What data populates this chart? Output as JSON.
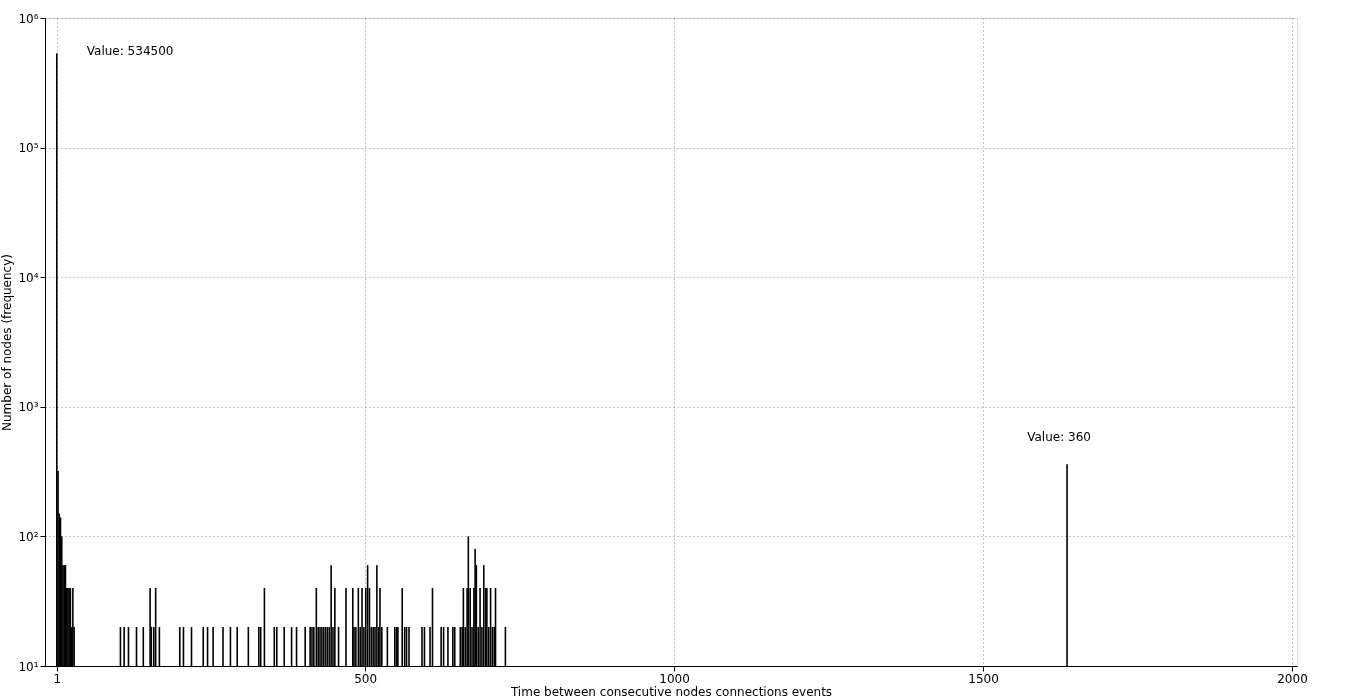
{
  "chart_data": {
    "type": "bar",
    "xlabel": "Time between consecutive nodes connections events",
    "ylabel": "Number of nodes (frequency)",
    "color": "#000000",
    "x": [
      1,
      3,
      5,
      7,
      9,
      11,
      13,
      15,
      17,
      19,
      21,
      23,
      25,
      27,
      29,
      104,
      110,
      117,
      130,
      141,
      152,
      154,
      158,
      161,
      167,
      200,
      206,
      219,
      238,
      245,
      254,
      270,
      282,
      293,
      311,
      328,
      331,
      337,
      353,
      357,
      369,
      381,
      389,
      403,
      411,
      414,
      417,
      421,
      424,
      427,
      430,
      433,
      436,
      439,
      442,
      445,
      448,
      451,
      457,
      469,
      480,
      482,
      485,
      489,
      492,
      495,
      498,
      501,
      504,
      507,
      510,
      513,
      516,
      519,
      522,
      524,
      527,
      536,
      548,
      551,
      553,
      560,
      564,
      567,
      571,
      592,
      596,
      605,
      609,
      623,
      627,
      634,
      642,
      645,
      654,
      657,
      659,
      662,
      665,
      667,
      670,
      673,
      676,
      678,
      680,
      683,
      686,
      689,
      692,
      695,
      697,
      700,
      703,
      706,
      709,
      711,
      727,
      1636
    ],
    "values": [
      534500,
      320,
      150,
      140,
      100,
      60,
      60,
      60,
      40,
      40,
      40,
      40,
      20,
      40,
      20,
      20,
      20,
      20,
      20,
      20,
      40,
      20,
      20,
      40,
      20,
      20,
      20,
      20,
      20,
      20,
      20,
      20,
      20,
      20,
      20,
      20,
      20,
      40,
      20,
      20,
      20,
      20,
      20,
      20,
      20,
      20,
      20,
      40,
      20,
      20,
      20,
      20,
      20,
      20,
      20,
      60,
      20,
      40,
      20,
      40,
      40,
      20,
      20,
      40,
      20,
      40,
      20,
      40,
      60,
      40,
      20,
      20,
      20,
      60,
      20,
      40,
      20,
      20,
      20,
      20,
      20,
      40,
      20,
      20,
      20,
      20,
      20,
      20,
      40,
      20,
      20,
      20,
      20,
      20,
      20,
      20,
      40,
      20,
      40,
      100,
      40,
      20,
      40,
      80,
      60,
      20,
      40,
      20,
      60,
      40,
      40,
      20,
      40,
      20,
      20,
      40,
      20,
      360
    ],
    "xlim": [
      -10,
      2000
    ],
    "xticks": [
      1,
      500,
      1000,
      1500,
      2000
    ],
    "ylim": [
      10,
      1000000
    ],
    "yticks": [
      {
        "value": 10,
        "label": "10¹"
      },
      {
        "value": 100,
        "label": "10²"
      },
      {
        "value": 1000,
        "label": "10³"
      },
      {
        "value": 10000,
        "label": "10⁴"
      },
      {
        "value": 100000,
        "label": "10⁵"
      },
      {
        "value": 1000000,
        "label": "10⁶"
      }
    ],
    "log": true,
    "grid": true,
    "annotations": [
      {
        "text": "Value: 534500",
        "x": 1,
        "y": 534500
      },
      {
        "text": "Value: 360",
        "x": 1636,
        "y": 360
      }
    ]
  }
}
